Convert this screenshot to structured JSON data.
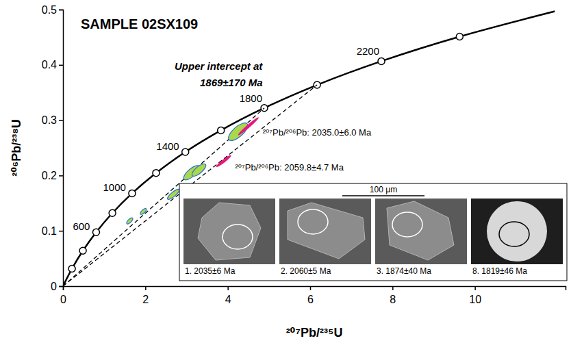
{
  "chart_data": {
    "type": "scatter",
    "title": "SAMPLE 02SX109",
    "x_label": "²⁰⁷Pb/²³⁵U",
    "y_label": "²⁰⁶Pb/²³⁸U",
    "xlim": [
      0,
      12.2
    ],
    "ylim": [
      0,
      0.5
    ],
    "xticks": [
      0,
      2,
      4,
      6,
      8,
      10
    ],
    "yticks": [
      0,
      0.1,
      0.2,
      0.3,
      0.4,
      0.5
    ],
    "grid": false,
    "annotations": [
      "Upper intercept at",
      "1869±170 Ma",
      "²⁰⁷Pb/²⁰⁶Pb: 2035.0±6.0 Ma",
      "²⁰⁷Pb/²⁰⁶Pb: 2059.8±4.7 Ma"
    ],
    "series": [
      {
        "type": "line",
        "color": "#000000",
        "line_style": "solid",
        "x": [
          0,
          0.2177,
          0.4828,
          0.8056,
          1.1987,
          1.6774,
          2.2604,
          2.9703,
          3.8348,
          4.8871,
          6.1686,
          7.7293,
          9.6293,
          11.94
        ],
        "values": [
          0,
          0.0315,
          0.064,
          0.0975,
          0.1321,
          0.1678,
          0.2046,
          0.2426,
          0.2817,
          0.3221,
          0.3638,
          0.4067,
          0.4511,
          0.4968
        ]
      },
      {
        "type": "scatter",
        "color": "#000000",
        "marker": "circle",
        "x": [
          0.2177,
          0.4828,
          0.8056,
          1.1987,
          1.6774,
          2.2604,
          2.9703,
          3.8348,
          4.8871,
          6.1686,
          7.7293,
          9.6293
        ],
        "values": [
          0.0315,
          0.064,
          0.0975,
          0.1321,
          0.1678,
          0.2046,
          0.2426,
          0.2817,
          0.3221,
          0.3638,
          0.4067,
          0.4511
        ],
        "labels": [
          null,
          null,
          "600",
          null,
          "1000",
          null,
          "1400",
          null,
          "1800",
          null,
          "2200",
          null
        ]
      },
      {
        "type": "line",
        "color": "#000000",
        "line_style": "dashed",
        "x": [
          0,
          4.8871
        ],
        "values": [
          0,
          0.3221
        ]
      },
      {
        "type": "line",
        "color": "#000000",
        "line_style": "dashed",
        "x": [
          0,
          6.1686
        ],
        "values": [
          0,
          0.3638
        ]
      },
      {
        "type": "ellipse",
        "color": "#a9d84a",
        "x": [
          4.25,
          3.12,
          3.3,
          2.68,
          1.95,
          1.62
        ],
        "values": [
          0.279,
          0.205,
          0.21,
          0.166,
          0.135,
          0.118
        ],
        "x_error": [
          0.22,
          0.18,
          0.16,
          0.14,
          0.07,
          0.07
        ],
        "y_error": [
          0.009,
          0.007,
          0.006,
          0.004,
          0.003,
          0.003
        ]
      },
      {
        "type": "ellipse",
        "color": "#e6197a",
        "x": [
          4.5,
          3.9
        ],
        "values": [
          0.289,
          0.226
        ],
        "x_error": [
          0.25,
          0.18
        ],
        "y_error": [
          0.003,
          0.003
        ]
      }
    ]
  },
  "inset": {
    "scale_bar": "100 μm",
    "panels": [
      {
        "caption": "1. 2035±6 Ma"
      },
      {
        "caption": "2. 2060±5 Ma"
      },
      {
        "caption": "3. 1874±40 Ma"
      },
      {
        "caption": "8. 1819±46 Ma"
      }
    ]
  }
}
